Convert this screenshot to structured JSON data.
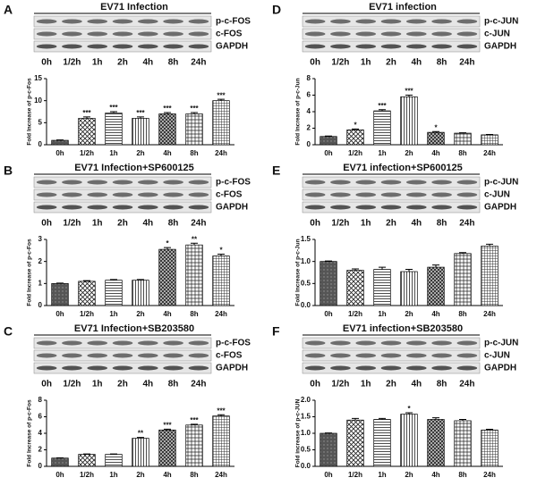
{
  "chart_data": [
    {
      "type": "bar",
      "panel": "A",
      "title": "EV71 Infection",
      "blot_labels": [
        "p-c-FOS",
        "c-FOS",
        "GAPDH"
      ],
      "blot_times": [
        "0h",
        "1/2h",
        "1h",
        "2h",
        "4h",
        "8h",
        "24h"
      ],
      "ylabel": "Fold Increase of p-c-Fos",
      "categories": [
        "0h",
        "1/2h",
        "1h",
        "2h",
        "4h",
        "8h",
        "24h"
      ],
      "values": [
        1,
        6,
        7.2,
        6,
        7,
        7,
        10
      ],
      "errors": [
        0.1,
        0.3,
        0.3,
        0.3,
        0.3,
        0.3,
        0.3
      ],
      "annotations": [
        null,
        "***",
        "***",
        "***",
        "***",
        "***",
        "***"
      ],
      "ylim": [
        0,
        15
      ],
      "yticks": [
        0,
        5,
        10,
        15
      ]
    },
    {
      "type": "bar",
      "panel": "D",
      "title": "EV71 infection",
      "blot_labels": [
        "p-c-JUN",
        "c-JUN",
        "GAPDH"
      ],
      "blot_times": [
        "0h",
        "1/2h",
        "1h",
        "2h",
        "4h",
        "8h",
        "24h"
      ],
      "ylabel": "Fold Increase of p-c-Jun",
      "categories": [
        "0h",
        "1/2h",
        "1h",
        "2h",
        "4h",
        "8h",
        "24h"
      ],
      "values": [
        1,
        1.8,
        4.1,
        5.8,
        1.5,
        1.4,
        1.2
      ],
      "errors": [
        0.05,
        0.1,
        0.15,
        0.2,
        0.1,
        0.05,
        0.05
      ],
      "annotations": [
        null,
        "*",
        "***",
        "***",
        "*",
        null,
        null
      ],
      "ylim": [
        0,
        8
      ],
      "yticks": [
        0,
        2,
        4,
        6,
        8
      ]
    },
    {
      "type": "bar",
      "panel": "B",
      "title": "EV71 Infection+SP600125",
      "blot_labels": [
        "p-c-FOS",
        "c-FOS",
        "GAPDH"
      ],
      "blot_times": [
        "0h",
        "1/2h",
        "1h",
        "2h",
        "4h",
        "8h",
        "24h"
      ],
      "ylabel": "Fold Increase of p-c-Fos",
      "categories": [
        "0h",
        "1/2h",
        "1h",
        "2h",
        "4h",
        "8h",
        "24h"
      ],
      "values": [
        1,
        1.1,
        1.15,
        1.15,
        2.55,
        2.75,
        2.25
      ],
      "errors": [
        0.02,
        0.03,
        0.03,
        0.03,
        0.08,
        0.08,
        0.08
      ],
      "annotations": [
        null,
        null,
        null,
        null,
        "*",
        "**",
        "*"
      ],
      "ylim": [
        0,
        3
      ],
      "yticks": [
        0,
        1,
        2,
        3
      ]
    },
    {
      "type": "bar",
      "panel": "E",
      "title": "EV71 infection+SP600125",
      "blot_labels": [
        "p-c-JUN",
        "c-JUN",
        "GAPDH"
      ],
      "blot_times": [
        "0h",
        "1/2h",
        "1h",
        "2h",
        "4h",
        "8h",
        "24h"
      ],
      "ylabel": "Fold Increase of p-c-Jun",
      "categories": [
        "0h",
        "1/2h",
        "1h",
        "2h",
        "4h",
        "8h",
        "24h"
      ],
      "values": [
        1.0,
        0.8,
        0.82,
        0.77,
        0.87,
        1.18,
        1.35
      ],
      "errors": [
        0.01,
        0.03,
        0.05,
        0.05,
        0.05,
        0.02,
        0.04
      ],
      "annotations": [
        null,
        null,
        null,
        null,
        null,
        null,
        null
      ],
      "ylim": [
        0,
        1.5
      ],
      "yticks": [
        {
          "value": 0,
          "label": "0.0"
        },
        {
          "value": 0.5,
          "label": "0.5"
        },
        {
          "value": 1,
          "label": "1.0"
        },
        {
          "value": 1.5,
          "label": "1.5"
        }
      ]
    },
    {
      "type": "bar",
      "panel": "C",
      "title": "EV71 Infection+SB203580",
      "blot_labels": [
        "p-c-FOS",
        "c-FOS",
        "GAPDH"
      ],
      "blot_times": [
        "0h",
        "1/2h",
        "1h",
        "2h",
        "4h",
        "8h",
        "24h"
      ],
      "ylabel": "Fold Increase of p-c-Fos",
      "categories": [
        "0h",
        "1/2h",
        "1h",
        "2h",
        "4h",
        "8h",
        "24h"
      ],
      "values": [
        1,
        1.45,
        1.45,
        3.4,
        4.4,
        5.0,
        6.1
      ],
      "errors": [
        0.03,
        0.05,
        0.05,
        0.1,
        0.1,
        0.1,
        0.15
      ],
      "annotations": [
        null,
        null,
        null,
        "**",
        "***",
        "***",
        "***"
      ],
      "ylim": [
        0,
        8
      ],
      "yticks": [
        0,
        2,
        4,
        6,
        8
      ]
    },
    {
      "type": "bar",
      "panel": "F",
      "title": "EV71 infection+SB203580",
      "blot_labels": [
        "p-c-JUN",
        "c-JUN",
        "GAPDH"
      ],
      "blot_times": [
        "0h",
        "1/2h",
        "1h",
        "2h",
        "4h",
        "8h",
        "24h"
      ],
      "ylabel": "Fold increase of p-c-JUN",
      "categories": [
        "0h",
        "1/2h",
        "1h",
        "2h",
        "4h",
        "8h",
        "24h"
      ],
      "values": [
        1.0,
        1.4,
        1.42,
        1.58,
        1.42,
        1.38,
        1.1
      ],
      "errors": [
        0.01,
        0.05,
        0.03,
        0.04,
        0.05,
        0.04,
        0.02
      ],
      "annotations": [
        null,
        null,
        null,
        "*",
        null,
        null,
        null
      ],
      "ylim": [
        0,
        2
      ],
      "yticks": [
        {
          "value": 0,
          "label": "0.0"
        },
        {
          "value": 0.5,
          "label": "0.5"
        },
        {
          "value": 1,
          "label": "1.0"
        },
        {
          "value": 1.5,
          "label": "1.5"
        },
        {
          "value": 2,
          "label": "2.0"
        }
      ]
    }
  ]
}
